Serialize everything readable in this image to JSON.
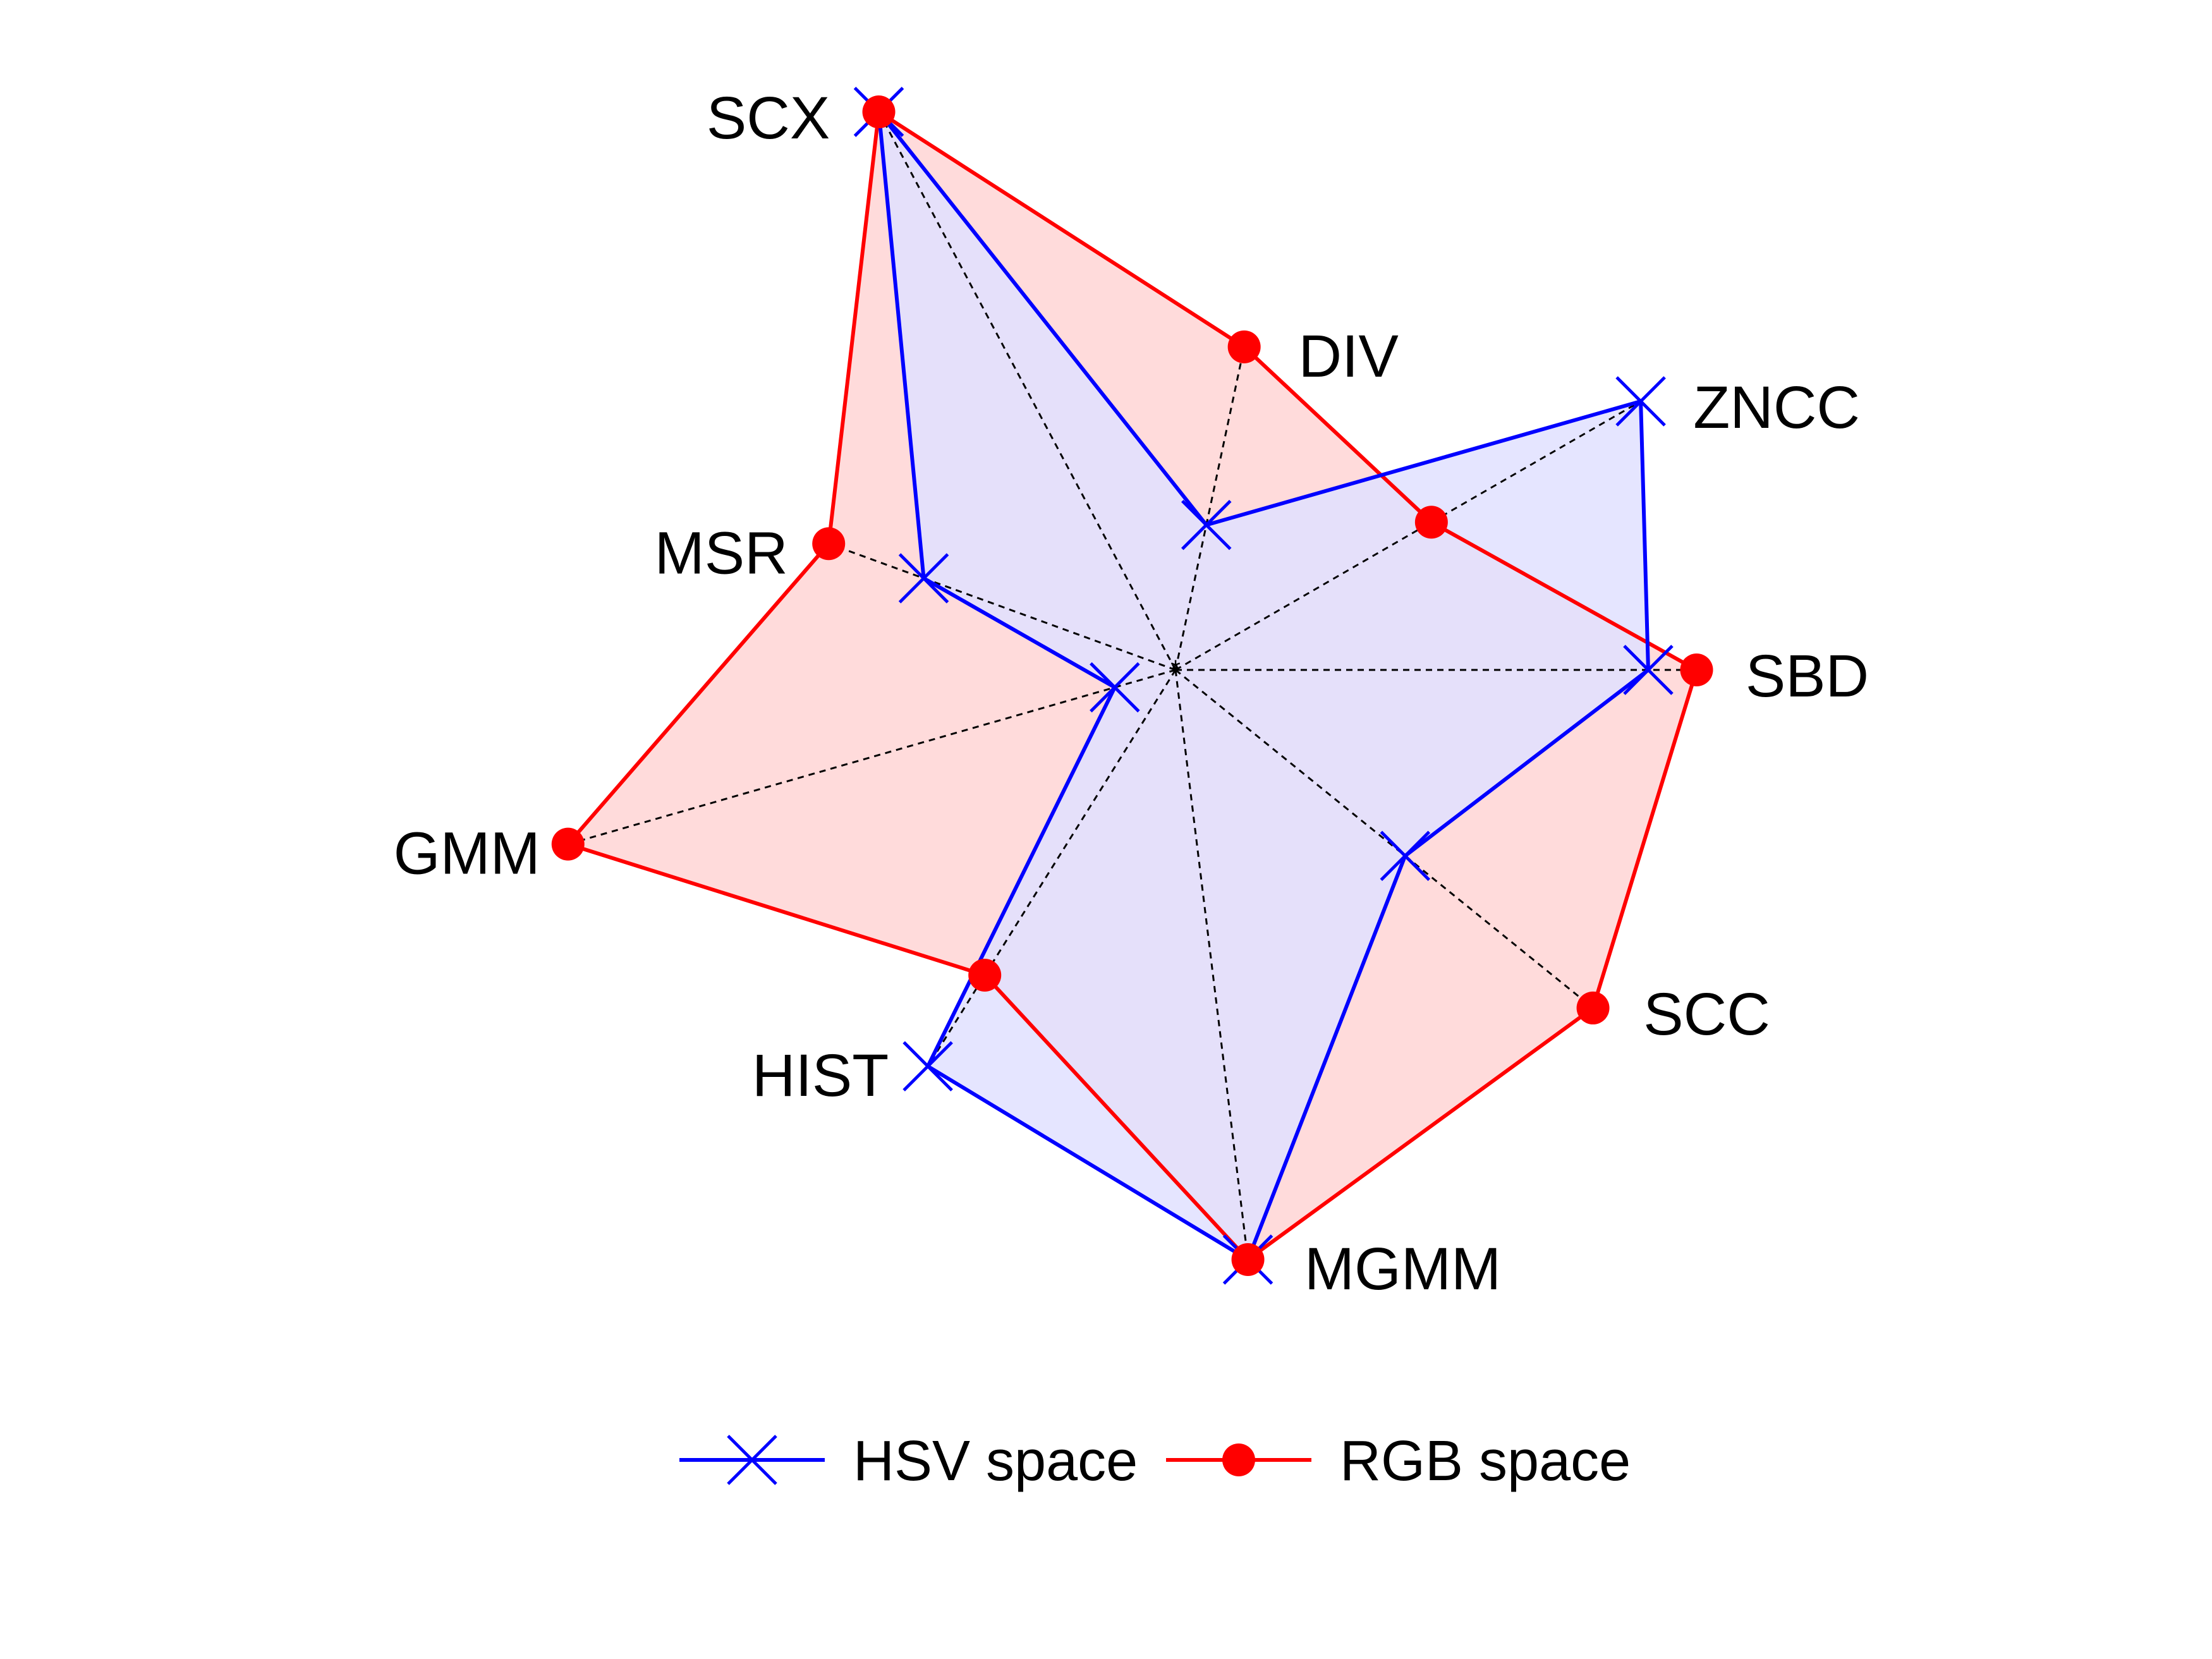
{
  "chart_data": {
    "type": "radar",
    "axes": [
      "SBD",
      "ZNCC",
      "DIV",
      "SCX",
      "MSR",
      "GMM",
      "HIST",
      "MGMM",
      "SCC"
    ],
    "r_range": [
      0,
      1
    ],
    "grid": false,
    "legend_position": "bottom",
    "series": [
      {
        "name": "HSV space",
        "color": "#0000ff",
        "fill": "#e0e0ff",
        "marker": "x",
        "values": [
          0.88,
          1.0,
          0.35,
          1.0,
          0.53,
          0.1,
          0.87,
          1.0,
          0.55
        ]
      },
      {
        "name": "RGB space",
        "color": "#ff0000",
        "fill": "#ffd7d7",
        "marker": "o",
        "values": [
          0.97,
          0.55,
          0.78,
          1.0,
          0.73,
          1.0,
          0.67,
          1.0,
          1.0
        ]
      }
    ]
  }
}
